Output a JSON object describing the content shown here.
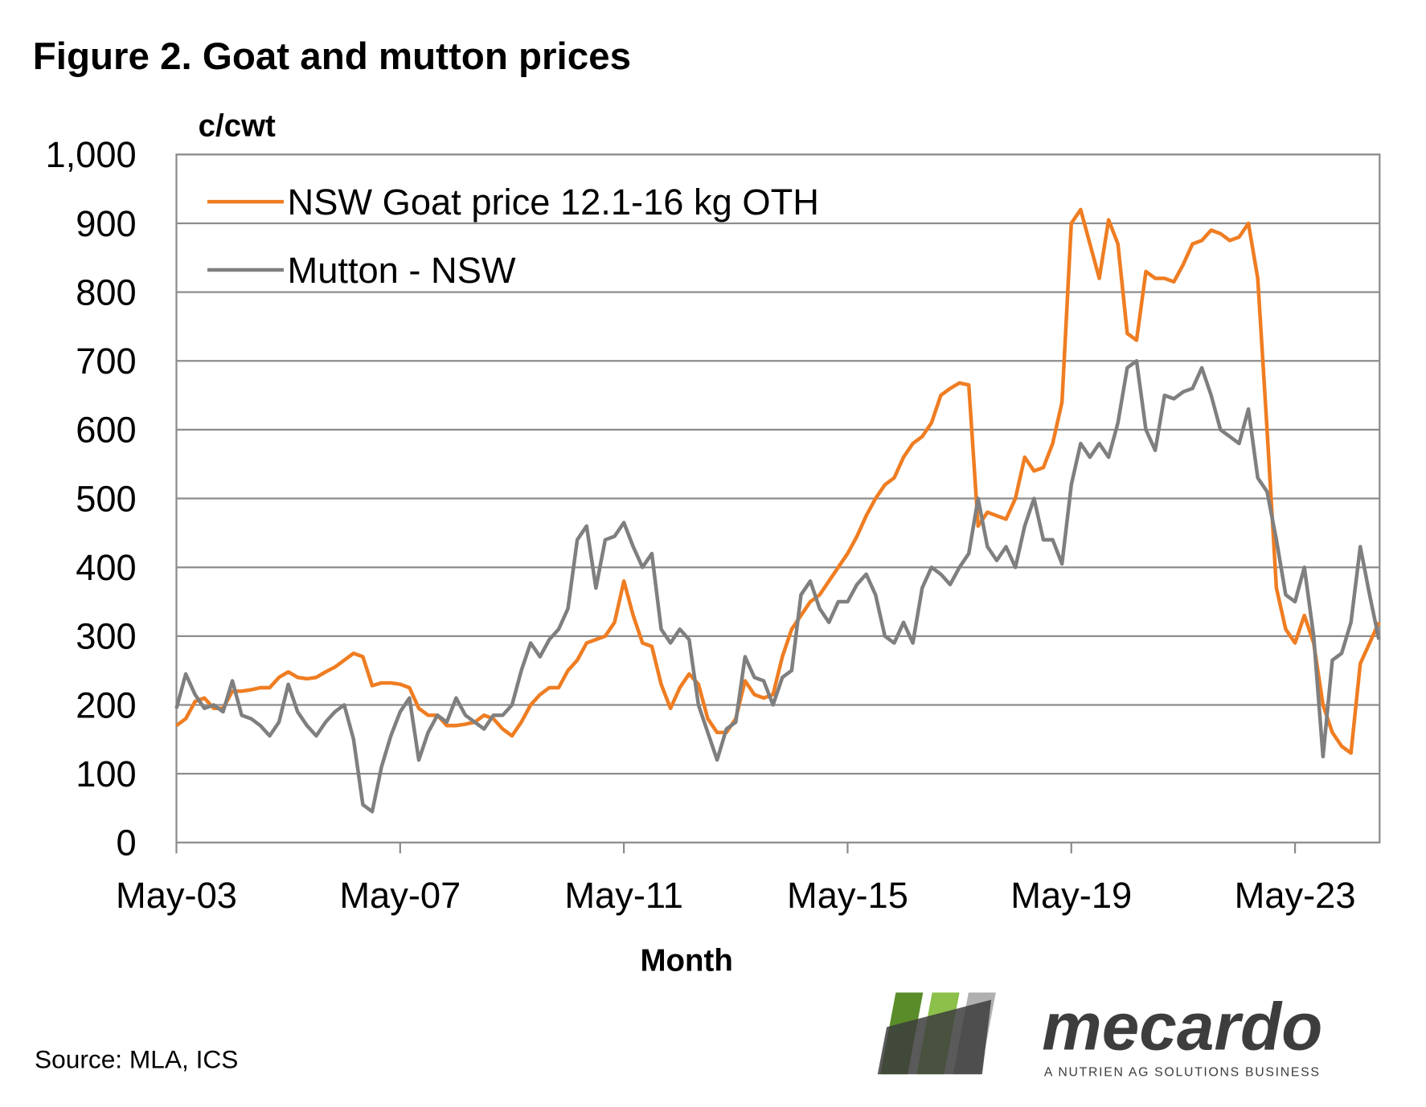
{
  "chart_data": {
    "type": "line",
    "title": "Figure 2. Goat and mutton prices",
    "y_label": "c/cwt",
    "x_label": "Month",
    "source": "Source: MLA, ICS",
    "categories": [
      "May-03",
      null,
      null,
      null,
      null,
      null,
      null,
      null,
      null,
      null,
      null,
      null,
      null,
      null,
      null,
      null,
      null,
      null,
      null,
      null,
      null,
      null,
      null,
      null,
      "May-07",
      null,
      null,
      null,
      null,
      null,
      null,
      null,
      null,
      null,
      null,
      null,
      null,
      null,
      null,
      null,
      null,
      null,
      null,
      null,
      null,
      null,
      null,
      null,
      "May-11",
      null,
      null,
      null,
      null,
      null,
      null,
      null,
      null,
      null,
      null,
      null,
      null,
      null,
      null,
      null,
      null,
      null,
      null,
      null,
      null,
      null,
      null,
      null,
      "May-15",
      null,
      null,
      null,
      null,
      null,
      null,
      null,
      null,
      null,
      null,
      null,
      null,
      null,
      null,
      null,
      null,
      null,
      null,
      null,
      null,
      null,
      null,
      null,
      "May-19",
      null,
      null,
      null,
      null,
      null,
      null,
      null,
      null,
      null,
      null,
      null,
      null,
      null,
      null,
      null,
      null,
      null,
      null,
      null,
      null,
      null,
      null,
      null,
      "May-23",
      null,
      null,
      null,
      null,
      null,
      null,
      null,
      null,
      null
    ],
    "series": [
      {
        "name": "NSW Goat price 12.1-16 kg OTH",
        "color": "#ef7d22",
        "values": [
          170,
          180,
          205,
          210,
          195,
          195,
          220,
          220,
          222,
          225,
          225,
          240,
          248,
          240,
          238,
          240,
          248,
          255,
          265,
          275,
          270,
          228,
          232,
          232,
          230,
          225,
          195,
          185,
          185,
          170,
          170,
          172,
          175,
          185,
          180,
          165,
          155,
          175,
          200,
          215,
          225,
          225,
          250,
          265,
          290,
          295,
          300,
          320,
          380,
          330,
          290,
          285,
          230,
          195,
          225,
          245,
          230,
          180,
          160,
          160,
          180,
          235,
          215,
          210,
          215,
          270,
          310,
          330,
          350,
          360,
          380,
          400,
          420,
          445,
          475,
          500,
          520,
          530,
          560,
          580,
          590,
          610,
          650,
          660,
          668,
          665,
          460,
          480,
          475,
          470,
          500,
          560,
          540,
          545,
          580,
          640,
          900,
          920,
          870,
          820,
          905,
          870,
          740,
          730,
          830,
          820,
          820,
          815,
          840,
          870,
          875,
          890,
          885,
          875,
          880,
          900,
          820,
          600,
          370,
          310,
          290,
          330,
          290,
          200,
          160,
          140,
          130,
          260,
          290,
          320
        ]
      },
      {
        "name": "Mutton - NSW",
        "color": "#7f7f7f",
        "values": [
          195,
          245,
          215,
          195,
          200,
          190,
          235,
          185,
          180,
          170,
          155,
          175,
          230,
          190,
          170,
          155,
          175,
          190,
          200,
          150,
          55,
          45,
          110,
          155,
          190,
          210,
          120,
          160,
          185,
          175,
          210,
          185,
          175,
          165,
          185,
          185,
          200,
          250,
          290,
          270,
          295,
          310,
          340,
          440,
          460,
          370,
          440,
          445,
          465,
          430,
          400,
          420,
          310,
          290,
          310,
          295,
          200,
          160,
          120,
          165,
          175,
          270,
          240,
          235,
          200,
          240,
          250,
          360,
          380,
          340,
          320,
          350,
          350,
          375,
          390,
          360,
          300,
          290,
          320,
          290,
          370,
          400,
          390,
          375,
          400,
          420,
          500,
          430,
          410,
          430,
          400,
          460,
          500,
          440,
          440,
          405,
          520,
          580,
          560,
          580,
          560,
          610,
          690,
          700,
          600,
          570,
          650,
          645,
          655,
          660,
          690,
          650,
          600,
          590,
          580,
          630,
          530,
          510,
          440,
          360,
          350,
          400,
          300,
          125,
          265,
          275,
          320,
          430,
          360,
          295
        ]
      }
    ],
    "ylim": [
      0,
      1000
    ],
    "yticks": [
      0,
      100,
      200,
      300,
      400,
      500,
      600,
      700,
      800,
      900,
      {
        "value": 1000,
        "label": "1,000"
      }
    ],
    "grid": true,
    "legend": "top-left",
    "logo": {
      "name": "mecardo",
      "tagline": "A NUTRIEN AG SOLUTIONS BUSINESS"
    }
  }
}
